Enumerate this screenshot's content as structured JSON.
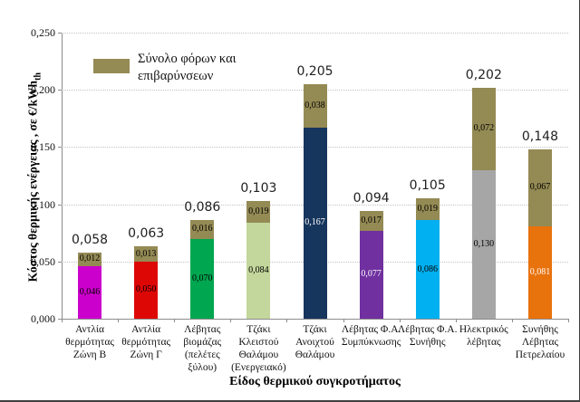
{
  "chart_data": {
    "type": "bar",
    "stacked": true,
    "title": "",
    "xlabel": "Είδος θερμικού συγκροτήματος",
    "ylabel": "Κόστος θερμικής ενέργειας , σε €/kWh",
    "ylabel_sub": "th",
    "ylim": [
      0,
      0.25
    ],
    "grid": "horizontal-dotted",
    "legend_position": "top-left-inside",
    "legend": {
      "label": "Σύνολο φόρων και\nεπιβαρύνσεων",
      "color": "#948A54"
    },
    "yticks": [
      {
        "value": 0.0,
        "label": "0,000"
      },
      {
        "value": 0.05,
        "label": "0,050"
      },
      {
        "value": 0.1,
        "label": "0,100"
      },
      {
        "value": 0.15,
        "label": "0,150"
      },
      {
        "value": 0.2,
        "label": "0,200"
      },
      {
        "value": 0.25,
        "label": "0,250"
      }
    ],
    "tax_series_name": "Σύνολο φόρων και επιβαρύνσεων",
    "tax_color": "#948A54",
    "tax_label_color": "#000000",
    "bars": [
      {
        "category": "Αντλία\nθερμότητας\nΖώνη Β",
        "base": 0.046,
        "base_label": "0,046",
        "base_color": "#CC00CC",
        "base_label_color": "#000000",
        "tax": 0.012,
        "tax_label": "0,012",
        "total": 0.058,
        "total_label": "0,058"
      },
      {
        "category": "Αντλία\nθερμότητας\nΖώνη Γ",
        "base": 0.05,
        "base_label": "0,050",
        "base_color": "#DD0806",
        "base_label_color": "#000000",
        "tax": 0.013,
        "tax_label": "0,013",
        "total": 0.063,
        "total_label": "0,063"
      },
      {
        "category": "Λέβητας\nβιομάζας\n(πελέτες\nξύλου)",
        "base": 0.07,
        "base_label": "0,070",
        "base_color": "#00A650",
        "base_label_color": "#000000",
        "tax": 0.016,
        "tax_label": "0,016",
        "total": 0.086,
        "total_label": "0,086"
      },
      {
        "category": "Τζάκι\nΚλειστού\nΘαλάμου\n(Ενεργειακό)",
        "base": 0.084,
        "base_label": "0,084",
        "base_color": "#C3D69B",
        "base_label_color": "#000000",
        "tax": 0.019,
        "tax_label": "0,019",
        "total": 0.103,
        "total_label": "0,103"
      },
      {
        "category": "Τζάκι\nΑνοιχτού\nΘαλάμου",
        "base": 0.167,
        "base_label": "0,167",
        "base_color": "#17365D",
        "base_label_color": "#ffffff",
        "tax": 0.038,
        "tax_label": "0,038",
        "total": 0.205,
        "total_label": "0,205"
      },
      {
        "category": "Λέβητας Φ.Α.\nΣυμπύκνωσης",
        "base": 0.077,
        "base_label": "0,077",
        "base_color": "#7030A0",
        "base_label_color": "#ffffff",
        "tax": 0.017,
        "tax_label": "0,017",
        "total": 0.094,
        "total_label": "0,094"
      },
      {
        "category": "Λέβητας Φ.Α.\nΣυνήθης",
        "base": 0.086,
        "base_label": "0,086",
        "base_color": "#00B0F0",
        "base_label_color": "#000000",
        "tax": 0.019,
        "tax_label": "0,019",
        "total": 0.105,
        "total_label": "0,105"
      },
      {
        "category": "Ηλεκτρικός\nλέβητας",
        "base": 0.13,
        "base_label": "0,130",
        "base_color": "#A6A6A6",
        "base_label_color": "#000000",
        "tax": 0.072,
        "tax_label": "0,072",
        "total": 0.202,
        "total_label": "0,202"
      },
      {
        "category": "Συνήθης\nΛέβητας\nΠετρελαίου",
        "base": 0.081,
        "base_label": "0,081",
        "base_color": "#E8720C",
        "base_label_color": "#ffffff",
        "tax": 0.067,
        "tax_label": "0,067",
        "total": 0.148,
        "total_label": "0,148"
      }
    ]
  }
}
